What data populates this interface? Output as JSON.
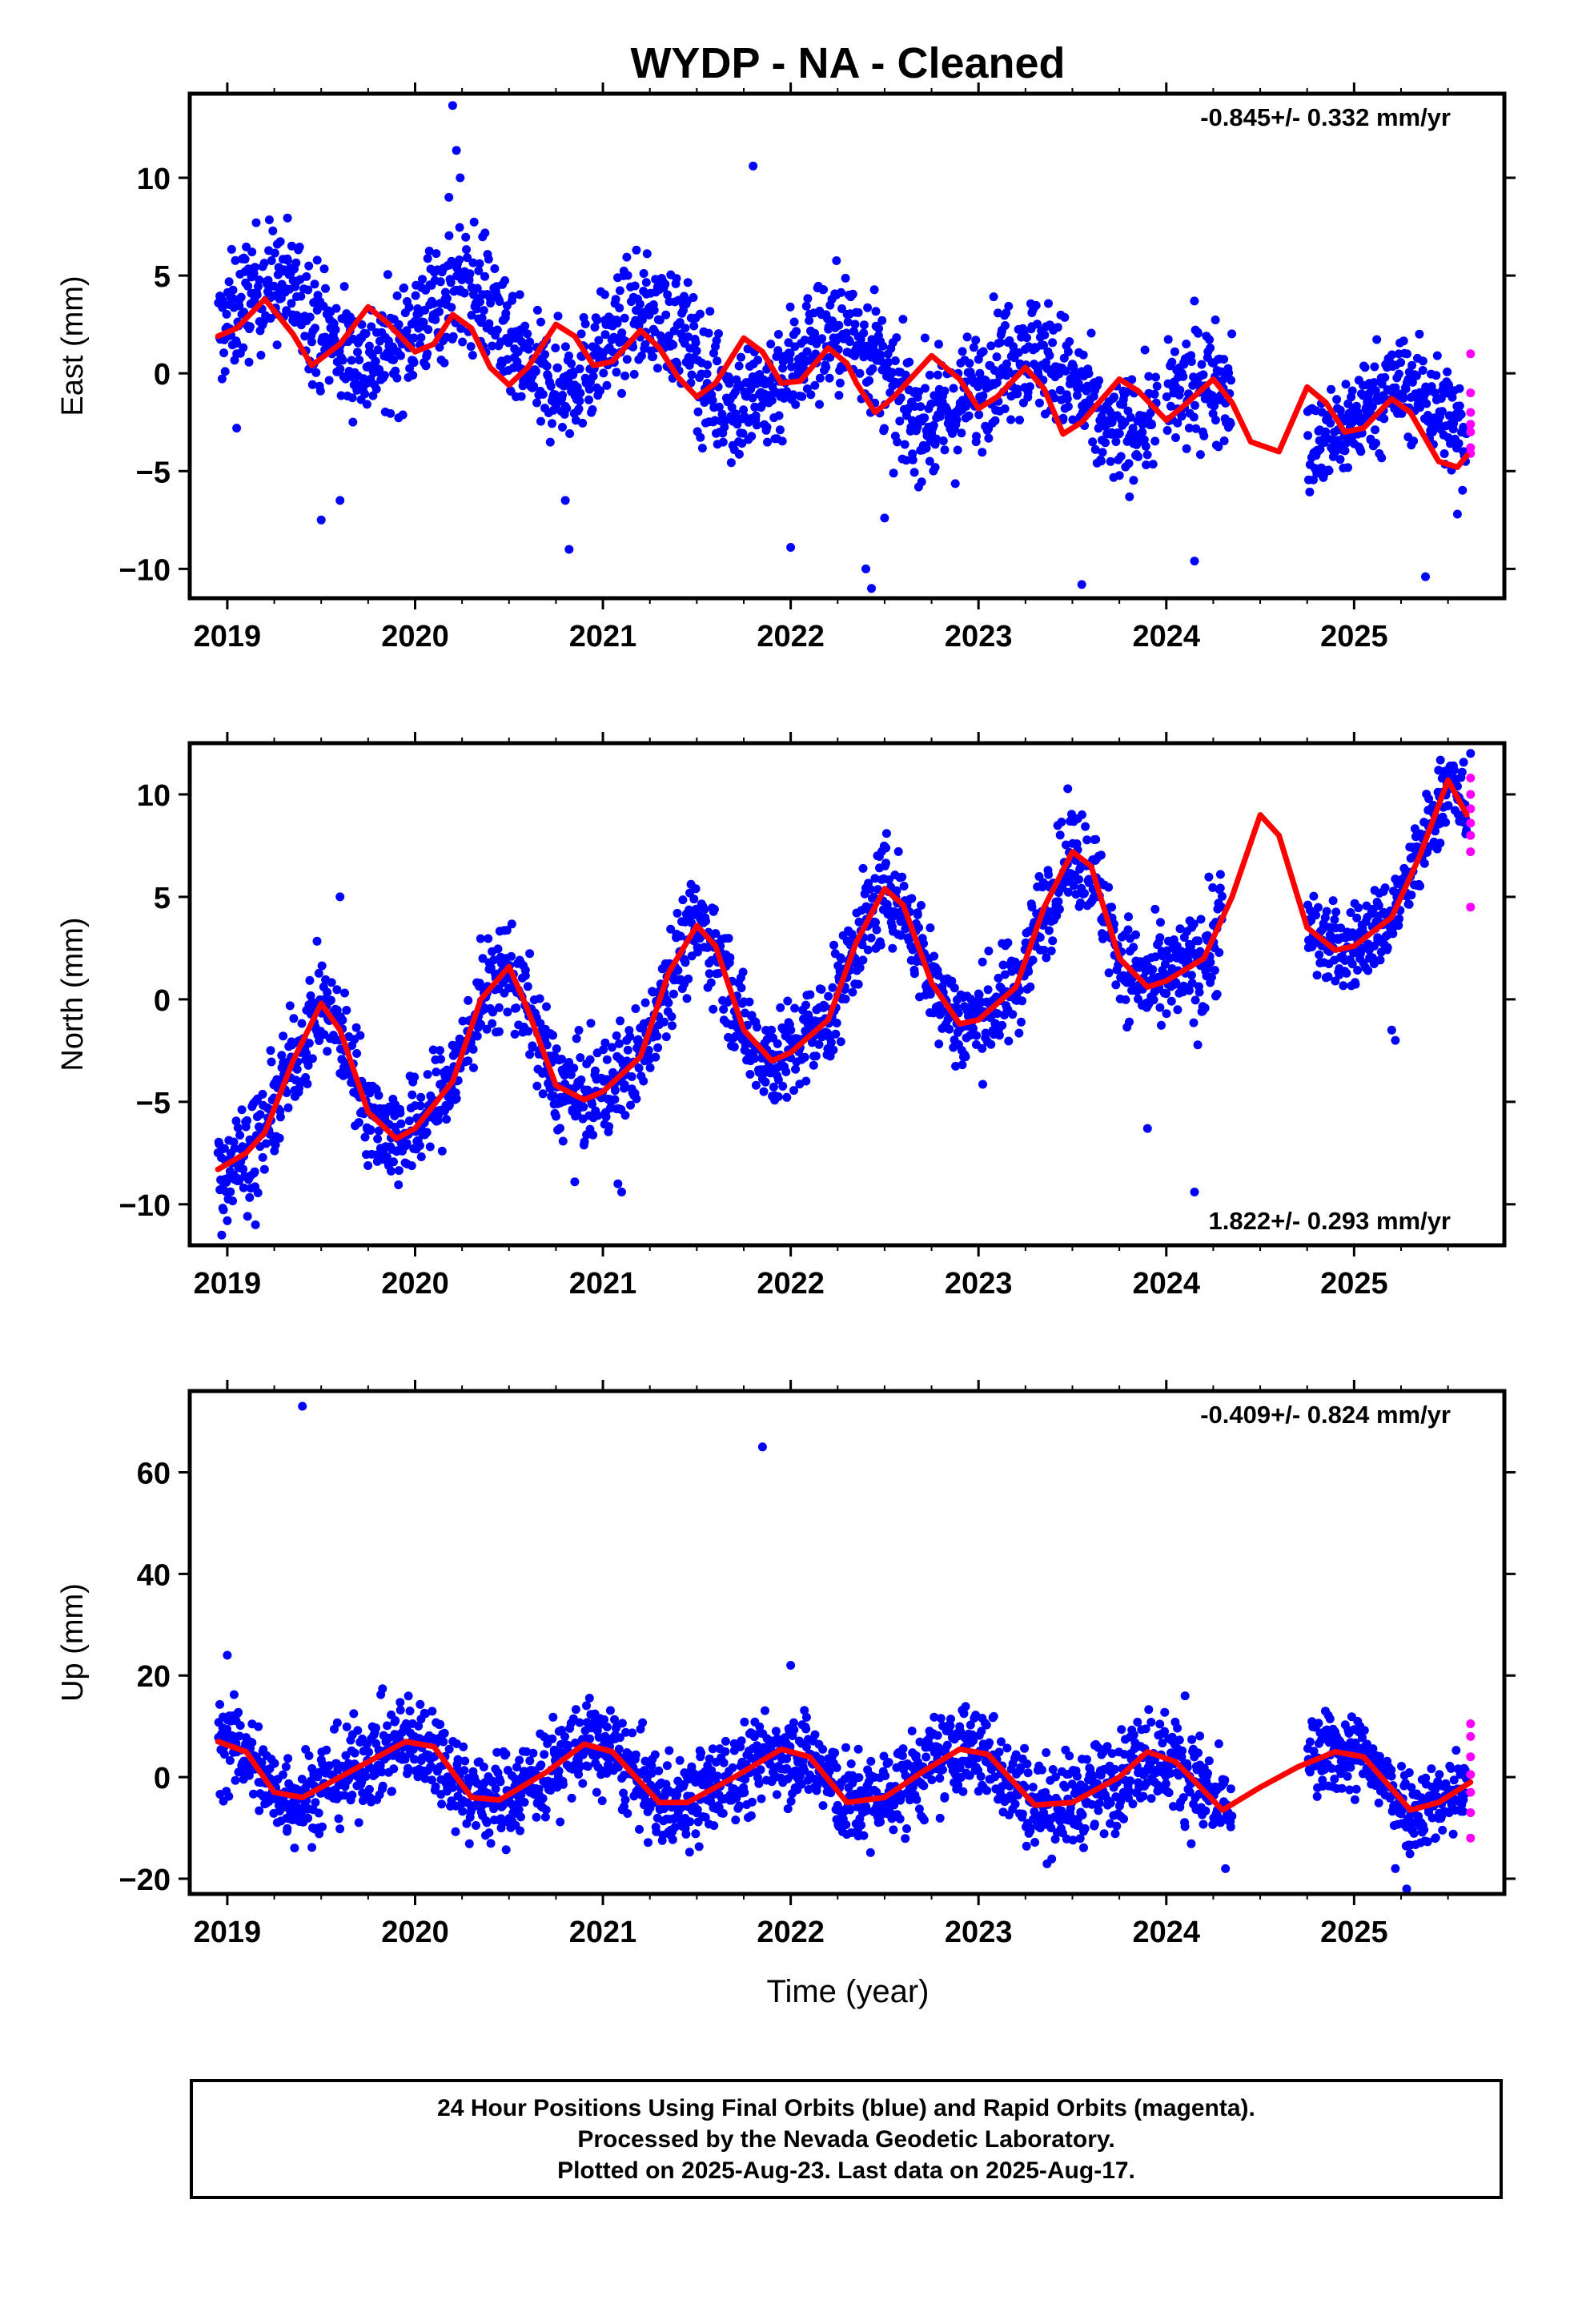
{
  "page": {
    "title": "WYDP  - NA - Cleaned",
    "xlabel": "Time (year)"
  },
  "footer": {
    "line1": "24 Hour Positions Using Final Orbits (blue) and Rapid Orbits (magenta).",
    "line2": "Processed by the Nevada Geodetic Laboratory.",
    "line3": "Plotted on 2025-Aug-23. Last data on 2025-Aug-17."
  },
  "colors": {
    "final": "#0000ff",
    "rapid": "#ff00ff",
    "model": "#ff0000",
    "axis": "#000000"
  },
  "chart_data": [
    {
      "type": "scatter",
      "name": "east",
      "ylabel": "East (mm)",
      "rate_text": "-0.845+/- 0.332 mm/yr",
      "rate_position": "top-right",
      "xlim": [
        2018.8,
        2025.8
      ],
      "ylim": [
        -11.5,
        14.3
      ],
      "xticks": [
        2019,
        2020,
        2021,
        2022,
        2023,
        2024,
        2025
      ],
      "yticks": [
        -10,
        -5,
        0,
        5,
        10
      ],
      "model": {
        "x": [
          2018.95,
          2019.05,
          2019.2,
          2019.35,
          2019.45,
          2019.6,
          2019.75,
          2019.85,
          2020.0,
          2020.1,
          2020.2,
          2020.3,
          2020.4,
          2020.5,
          2020.6,
          2020.75,
          2020.85,
          2020.95,
          2021.05,
          2021.2,
          2021.3,
          2021.4,
          2021.5,
          2021.6,
          2021.75,
          2021.85,
          2021.95,
          2022.05,
          2022.2,
          2022.3,
          2022.35,
          2022.45,
          2022.55,
          2022.75,
          2022.9,
          2023.0,
          2023.1,
          2023.25,
          2023.35,
          2023.45,
          2023.55,
          2023.75,
          2023.85,
          2024.0,
          2024.1,
          2024.25,
          2024.35,
          2024.45,
          2024.6,
          2024.75,
          2024.85,
          2024.95,
          2025.05,
          2025.2,
          2025.3,
          2025.45,
          2025.55,
          2025.6
        ],
        "y": [
          1.9,
          2.3,
          3.8,
          2.0,
          0.4,
          1.5,
          3.4,
          2.6,
          1.1,
          1.5,
          3.0,
          2.3,
          0.3,
          -0.6,
          0.3,
          2.5,
          1.9,
          0.4,
          0.6,
          2.2,
          1.3,
          -0.2,
          -1.2,
          -0.5,
          1.8,
          1.1,
          -0.5,
          -0.4,
          1.3,
          0.5,
          -0.5,
          -2.0,
          -1.2,
          0.9,
          -0.3,
          -1.8,
          -1.2,
          0.3,
          -0.8,
          -3.1,
          -2.5,
          -0.3,
          -0.9,
          -2.4,
          -1.6,
          -0.3,
          -1.5,
          -3.5,
          -4.0,
          -0.7,
          -1.5,
          -3.0,
          -2.8,
          -1.3,
          -2.0,
          -4.5,
          -4.8,
          -4.2
        ]
      },
      "series": [
        {
          "name": "final",
          "segments": [
            {
              "x": [
                2018.95,
                2019.45
              ],
              "base": 2.6,
              "amp": 2.0,
              "scatter": 1.5
            },
            {
              "x": [
                2019.45,
                2020.0
              ],
              "base": 2.4,
              "amp": 1.7,
              "scatter": 1.5
            },
            {
              "x": [
                2020.0,
                2020.45
              ],
              "base": 2.5,
              "amp": 1.8,
              "scatter": 1.6
            },
            {
              "x": [
                2020.45,
                2021.5
              ],
              "base": 1.2,
              "amp": 1.8,
              "scatter": 1.4
            },
            {
              "x": [
                2021.5,
                2022.5
              ],
              "base": 0.3,
              "amp": 1.8,
              "scatter": 1.6
            },
            {
              "x": [
                2022.5,
                2023.6
              ],
              "base": -0.6,
              "amp": 1.8,
              "scatter": 1.5
            },
            {
              "x": [
                2023.6,
                2023.95
              ],
              "base": -1.5,
              "amp": 1.5,
              "scatter": 1.3
            },
            {
              "x": [
                2024.0,
                2024.35
              ],
              "base": -1.7,
              "amp": 1.4,
              "scatter": 1.5
            },
            {
              "x": [
                2024.75,
                2025.6
              ],
              "base": -2.3,
              "amp": 1.6,
              "scatter": 1.3
            }
          ]
        },
        {
          "name": "rapid",
          "x": [
            2025.62,
            2025.62,
            2025.62,
            2025.62,
            2025.62,
            2025.62,
            2025.62
          ],
          "y": [
            1.0,
            -1.0,
            -2.0,
            -2.6,
            -3.0,
            -3.8,
            -4.1
          ]
        }
      ],
      "outliers": {
        "x": [
          2019.05,
          2019.5,
          2019.6,
          2020.2,
          2020.22,
          2020.24,
          2020.18,
          2021.8,
          2020.8,
          2020.82,
          2022.43,
          2022.4,
          2022.0,
          2023.55,
          2024.15,
          2025.38,
          2025.55,
          2022.5
        ],
        "y": [
          -2.8,
          -7.5,
          -6.5,
          13.7,
          11.4,
          10.0,
          9.0,
          10.6,
          -6.5,
          -9.0,
          -11.0,
          -10.0,
          -8.9,
          -10.8,
          -9.6,
          -10.4,
          -7.2,
          -7.4
        ]
      }
    },
    {
      "type": "scatter",
      "name": "north",
      "ylabel": "North (mm)",
      "rate_text": "1.822+/- 0.293 mm/yr",
      "rate_position": "bottom-right",
      "xlim": [
        2018.8,
        2025.8
      ],
      "ylim": [
        -12,
        12.5
      ],
      "xticks": [
        2019,
        2020,
        2021,
        2022,
        2023,
        2024,
        2025
      ],
      "yticks": [
        -10,
        -5,
        0,
        5,
        10
      ],
      "model": {
        "x": [
          2018.95,
          2019.1,
          2019.2,
          2019.35,
          2019.5,
          2019.6,
          2019.75,
          2019.9,
          2020.0,
          2020.2,
          2020.35,
          2020.5,
          2020.6,
          2020.75,
          2020.9,
          2021.0,
          2021.2,
          2021.35,
          2021.5,
          2021.6,
          2021.75,
          2021.9,
          2022.0,
          2022.2,
          2022.35,
          2022.5,
          2022.6,
          2022.75,
          2022.9,
          2023.0,
          2023.2,
          2023.35,
          2023.5,
          2023.6,
          2023.75,
          2023.9,
          2024.0,
          2024.2,
          2024.35,
          2024.5,
          2024.6,
          2024.75,
          2024.9,
          2025.0,
          2025.2,
          2025.35,
          2025.5,
          2025.6
        ],
        "y": [
          -8.3,
          -7.5,
          -6.5,
          -3.0,
          -0.2,
          -1.5,
          -5.5,
          -6.8,
          -6.3,
          -4.0,
          0.0,
          1.6,
          -0.5,
          -4.2,
          -4.9,
          -4.5,
          -2.8,
          1.3,
          3.6,
          2.6,
          -1.5,
          -3.0,
          -2.6,
          -1.0,
          2.8,
          5.4,
          4.6,
          0.8,
          -1.2,
          -1.0,
          0.6,
          4.5,
          7.2,
          6.5,
          2.0,
          0.6,
          0.9,
          2.0,
          5.0,
          9.0,
          8.0,
          3.5,
          2.4,
          2.6,
          4.0,
          7.0,
          10.7,
          9.0
        ]
      },
      "series": [
        {
          "name": "final",
          "segments": [
            {
              "x": [
                2018.95,
                2024.15
              ],
              "scatter": 1.2,
              "follow_model": true
            },
            {
              "x": [
                2024.15,
                2024.3
              ],
              "scatter": 1.6,
              "follow_model": true
            },
            {
              "x": [
                2024.75,
                2025.6
              ],
              "scatter": 1.0,
              "follow_model": true
            }
          ]
        },
        {
          "name": "rapid",
          "x": [
            2025.62,
            2025.62,
            2025.62,
            2025.62,
            2025.62,
            2025.62,
            2025.62
          ],
          "y": [
            10.8,
            10.0,
            9.3,
            8.6,
            8.0,
            7.2,
            4.5
          ]
        }
      ],
      "outliers": {
        "x": [
          2018.97,
          2019.0,
          2019.15,
          2019.6,
          2020.85,
          2021.08,
          2021.1,
          2023.9,
          2024.15,
          2025.2,
          2025.22,
          2025.62
        ],
        "y": [
          -11.5,
          -10.8,
          -11.0,
          5.0,
          -8.9,
          -9.0,
          -9.4,
          -6.3,
          -9.4,
          -1.5,
          -2.0,
          12.0
        ]
      }
    },
    {
      "type": "scatter",
      "name": "up",
      "ylabel": "Up (mm)",
      "rate_text": "-0.409+/- 0.824 mm/yr",
      "rate_position": "top-right",
      "xlim": [
        2018.8,
        2025.8
      ],
      "ylim": [
        -23,
        76
      ],
      "xticks": [
        2019,
        2020,
        2021,
        2022,
        2023,
        2024,
        2025
      ],
      "yticks": [
        -20,
        0,
        20,
        40,
        60
      ],
      "model": {
        "x": [
          2018.95,
          2019.1,
          2019.25,
          2019.4,
          2019.6,
          2019.8,
          2019.95,
          2020.1,
          2020.3,
          2020.45,
          2020.7,
          2020.9,
          2021.05,
          2021.3,
          2021.45,
          2021.7,
          2021.95,
          2022.1,
          2022.3,
          2022.5,
          2022.7,
          2022.9,
          2023.05,
          2023.3,
          2023.5,
          2023.75,
          2023.9,
          2024.05,
          2024.3,
          2024.5,
          2024.7,
          2024.9,
          2025.05,
          2025.3,
          2025.45,
          2025.62
        ],
        "y": [
          7.0,
          5.0,
          -3.0,
          -4.0,
          0.0,
          4.0,
          7.0,
          6.0,
          -4.0,
          -4.5,
          1.0,
          6.5,
          5.0,
          -5.0,
          -5.0,
          0.0,
          5.5,
          4.0,
          -5.0,
          -4.0,
          1.0,
          5.5,
          4.5,
          -5.5,
          -5.0,
          0.0,
          5.0,
          3.0,
          -6.5,
          -2.0,
          2.0,
          5.0,
          4.0,
          -6.5,
          -5.0,
          -1.0
        ]
      },
      "series": [
        {
          "name": "final",
          "segments": [
            {
              "x": [
                2018.95,
                2024.35
              ],
              "scatter": 4.5,
              "follow_model": true
            },
            {
              "x": [
                2024.75,
                2025.6
              ],
              "scatter": 4.0,
              "follow_model": true
            }
          ]
        },
        {
          "name": "rapid",
          "x": [
            2025.62,
            2025.62,
            2025.62,
            2025.62,
            2025.62,
            2025.62,
            2025.62
          ],
          "y": [
            10.5,
            8.0,
            4.0,
            0.5,
            -3.0,
            -7.0,
            -12.0
          ]
        }
      ],
      "outliers": {
        "x": [
          2019.4,
          2021.85,
          2019.0,
          2022.0,
          2025.28,
          2025.22,
          2024.1
        ],
        "y": [
          73.0,
          65.0,
          24.0,
          22.0,
          -22.0,
          -18.0,
          16.0
        ]
      }
    }
  ]
}
